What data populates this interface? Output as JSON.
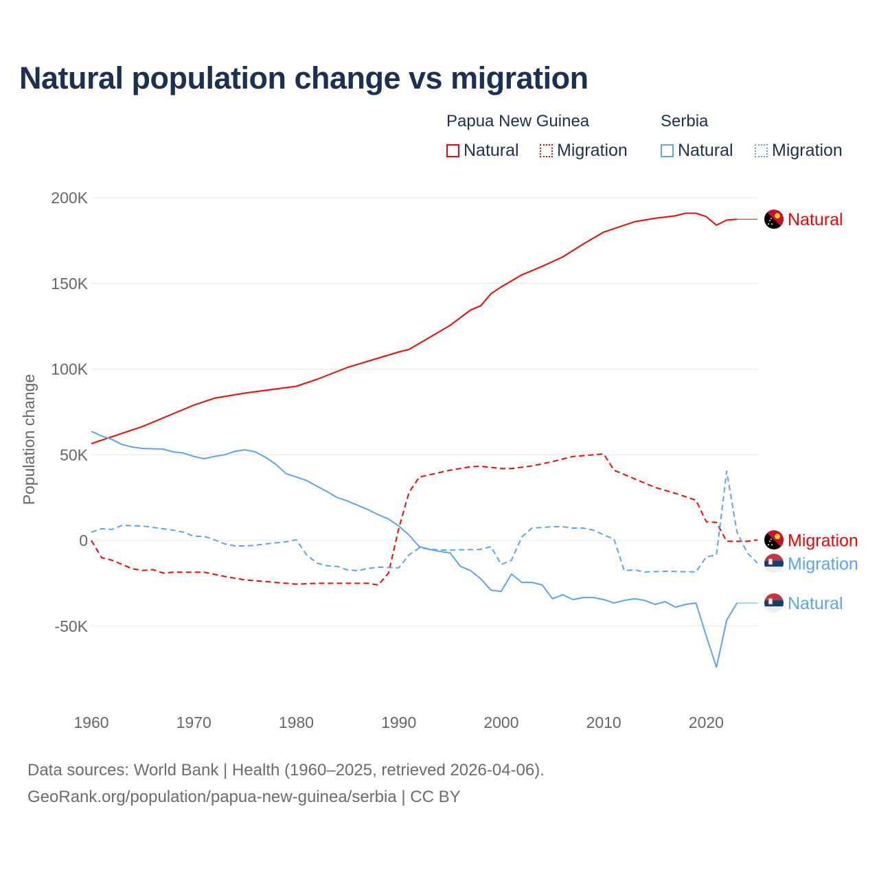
{
  "title": "Natural population change vs migration",
  "legend": {
    "groups": [
      {
        "name": "Papua New Guinea",
        "color": "#ff0000",
        "items": [
          "Natural",
          "Migration"
        ]
      },
      {
        "name": "Serbia",
        "color": "#5ba4ee",
        "items": [
          "Natural",
          "Migration"
        ]
      }
    ]
  },
  "footer": {
    "line1": "Data sources: World Bank | Health (1960–2025, retrieved 2026-04-06).",
    "line2": "GeoRank.org/population/papua-new-guinea/serbia | CC BY"
  },
  "chart_data": {
    "type": "line",
    "title": "Natural population change vs migration",
    "xlabel": "",
    "ylabel": "Population change",
    "xlim": [
      1960,
      2025
    ],
    "ylim": [
      -100000,
      200000
    ],
    "yticks": [
      {
        "v": 200000,
        "label": "200K"
      },
      {
        "v": 150000,
        "label": "150K"
      },
      {
        "v": 100000,
        "label": "100K"
      },
      {
        "v": 50000,
        "label": "50K"
      },
      {
        "v": 0,
        "label": "0"
      },
      {
        "v": -50000,
        "label": "-50K"
      }
    ],
    "xticks": [
      {
        "v": 1960,
        "label": "1960"
      },
      {
        "v": 1970,
        "label": "1970"
      },
      {
        "v": 1980,
        "label": "1980"
      },
      {
        "v": 1990,
        "label": "1990"
      },
      {
        "v": 2000,
        "label": "2000"
      },
      {
        "v": 2010,
        "label": "2010"
      },
      {
        "v": 2020,
        "label": "2020"
      }
    ],
    "grid": true,
    "legend_position": "top-right",
    "series": [
      {
        "name": "Papua New Guinea Natural",
        "label": "Natural",
        "country": "png",
        "color": "#ff0000",
        "dashed": false,
        "extend_to": 2025,
        "points": [
          [
            1960,
            56500
          ],
          [
            1965,
            66500
          ],
          [
            1970,
            79000
          ],
          [
            1972,
            83000
          ],
          [
            1975,
            86000
          ],
          [
            1980,
            90000
          ],
          [
            1982,
            94000
          ],
          [
            1985,
            101000
          ],
          [
            1990,
            110000
          ],
          [
            1991,
            111500
          ],
          [
            1992,
            115000
          ],
          [
            1995,
            125500
          ],
          [
            1997,
            134500
          ],
          [
            1998,
            137000
          ],
          [
            1999,
            144000
          ],
          [
            2000,
            148000
          ],
          [
            2002,
            155000
          ],
          [
            2004,
            160000
          ],
          [
            2006,
            165500
          ],
          [
            2008,
            173000
          ],
          [
            2010,
            180000
          ],
          [
            2011,
            182000
          ],
          [
            2013,
            186000
          ],
          [
            2015,
            188000
          ],
          [
            2017,
            189500
          ],
          [
            2018,
            191000
          ],
          [
            2019,
            191000
          ],
          [
            2020,
            189000
          ],
          [
            2021,
            184000
          ],
          [
            2022,
            187000
          ],
          [
            2023,
            187500
          ]
        ]
      },
      {
        "name": "Papua New Guinea Migration",
        "label": "Migration",
        "country": "png",
        "color": "#ff0000",
        "dashed": true,
        "points": [
          [
            1960,
            0
          ],
          [
            1961,
            -10000
          ],
          [
            1962,
            -11500
          ],
          [
            1963,
            -14000
          ],
          [
            1964,
            -16500
          ],
          [
            1965,
            -17500
          ],
          [
            1966,
            -17000
          ],
          [
            1967,
            -19000
          ],
          [
            1968,
            -18500
          ],
          [
            1971,
            -18500
          ],
          [
            1973,
            -21000
          ],
          [
            1975,
            -23000
          ],
          [
            1980,
            -25500
          ],
          [
            1982,
            -25000
          ],
          [
            1987,
            -25000
          ],
          [
            1988,
            -26000
          ],
          [
            1989,
            -19000
          ],
          [
            1990,
            7000
          ],
          [
            1991,
            28000
          ],
          [
            1992,
            37000
          ],
          [
            1995,
            41000
          ],
          [
            1997,
            43000
          ],
          [
            1998,
            43300
          ],
          [
            2000,
            42000
          ],
          [
            2001,
            42000
          ],
          [
            2003,
            43500
          ],
          [
            2005,
            46000
          ],
          [
            2007,
            49000
          ],
          [
            2009,
            50000
          ],
          [
            2010,
            50500
          ],
          [
            2011,
            41000
          ],
          [
            2013,
            36000
          ],
          [
            2015,
            31000
          ],
          [
            2017,
            27500
          ],
          [
            2019,
            23500
          ],
          [
            2020,
            11000
          ],
          [
            2021,
            10500
          ],
          [
            2022,
            -500
          ],
          [
            2024,
            -500
          ],
          [
            2025,
            300
          ]
        ]
      },
      {
        "name": "Serbia Natural",
        "label": "Natural",
        "country": "srb",
        "color": "#5ba4ee",
        "dashed": false,
        "extend_to": 2025,
        "points": [
          [
            1960,
            63700
          ],
          [
            1961,
            61000
          ],
          [
            1962,
            59000
          ],
          [
            1963,
            56000
          ],
          [
            1964,
            54500
          ],
          [
            1965,
            53700
          ],
          [
            1967,
            53300
          ],
          [
            1968,
            51700
          ],
          [
            1969,
            51000
          ],
          [
            1970,
            49000
          ],
          [
            1971,
            47700
          ],
          [
            1972,
            49000
          ],
          [
            1973,
            50000
          ],
          [
            1974,
            52000
          ],
          [
            1975,
            52900
          ],
          [
            1976,
            51700
          ],
          [
            1977,
            48500
          ],
          [
            1978,
            44500
          ],
          [
            1979,
            39000
          ],
          [
            1980,
            37000
          ],
          [
            1981,
            35000
          ],
          [
            1982,
            31700
          ],
          [
            1983,
            28500
          ],
          [
            1984,
            25000
          ],
          [
            1985,
            23000
          ],
          [
            1986,
            20500
          ],
          [
            1987,
            18000
          ],
          [
            1988,
            15000
          ],
          [
            1989,
            12500
          ],
          [
            1990,
            8400
          ],
          [
            1991,
            3200
          ],
          [
            1992,
            -3600
          ],
          [
            1993,
            -5200
          ],
          [
            1994,
            -6400
          ],
          [
            1995,
            -7200
          ],
          [
            1996,
            -15000
          ],
          [
            1997,
            -17600
          ],
          [
            1998,
            -22400
          ],
          [
            1999,
            -29000
          ],
          [
            2000,
            -29700
          ],
          [
            2001,
            -19600
          ],
          [
            2002,
            -24500
          ],
          [
            2003,
            -24500
          ],
          [
            2004,
            -26000
          ],
          [
            2005,
            -34000
          ],
          [
            2006,
            -31700
          ],
          [
            2007,
            -34500
          ],
          [
            2008,
            -33300
          ],
          [
            2009,
            -33300
          ],
          [
            2010,
            -34500
          ],
          [
            2011,
            -36500
          ],
          [
            2012,
            -35000
          ],
          [
            2013,
            -34000
          ],
          [
            2014,
            -35000
          ],
          [
            2015,
            -37300
          ],
          [
            2016,
            -35700
          ],
          [
            2017,
            -38900
          ],
          [
            2018,
            -37300
          ],
          [
            2019,
            -36500
          ],
          [
            2020,
            -55700
          ],
          [
            2021,
            -74000
          ],
          [
            2022,
            -46500
          ],
          [
            2023,
            -36500
          ]
        ]
      },
      {
        "name": "Serbia Migration",
        "label": "Migration",
        "country": "srb",
        "color": "#5ba4ee",
        "dashed": true,
        "points": [
          [
            1960,
            4800
          ],
          [
            1961,
            6800
          ],
          [
            1962,
            6400
          ],
          [
            1963,
            8800
          ],
          [
            1965,
            8400
          ],
          [
            1967,
            6800
          ],
          [
            1968,
            6000
          ],
          [
            1969,
            4800
          ],
          [
            1970,
            2400
          ],
          [
            1971,
            2400
          ],
          [
            1972,
            400
          ],
          [
            1973,
            -2000
          ],
          [
            1974,
            -3200
          ],
          [
            1975,
            -3200
          ],
          [
            1976,
            -2800
          ],
          [
            1977,
            -2000
          ],
          [
            1979,
            -800
          ],
          [
            1980,
            400
          ],
          [
            1981,
            -8400
          ],
          [
            1982,
            -13200
          ],
          [
            1983,
            -14800
          ],
          [
            1984,
            -15200
          ],
          [
            1985,
            -17200
          ],
          [
            1986,
            -17600
          ],
          [
            1987,
            -16400
          ],
          [
            1988,
            -15600
          ],
          [
            1990,
            -16000
          ],
          [
            1991,
            -8400
          ],
          [
            1992,
            -4400
          ],
          [
            1994,
            -5600
          ],
          [
            1995,
            -5600
          ],
          [
            1998,
            -5200
          ],
          [
            1999,
            -3600
          ],
          [
            2000,
            -14000
          ],
          [
            2001,
            -11600
          ],
          [
            2002,
            2000
          ],
          [
            2003,
            7200
          ],
          [
            2005,
            8000
          ],
          [
            2006,
            8000
          ],
          [
            2007,
            7200
          ],
          [
            2008,
            7200
          ],
          [
            2009,
            6000
          ],
          [
            2010,
            3200
          ],
          [
            2011,
            800
          ],
          [
            2012,
            -17600
          ],
          [
            2013,
            -17200
          ],
          [
            2014,
            -18400
          ],
          [
            2016,
            -18000
          ],
          [
            2019,
            -18400
          ],
          [
            2020,
            -9600
          ],
          [
            2021,
            -8400
          ],
          [
            2022,
            40500
          ],
          [
            2023,
            4800
          ],
          [
            2024,
            -7200
          ],
          [
            2025,
            -13200
          ]
        ]
      }
    ]
  }
}
